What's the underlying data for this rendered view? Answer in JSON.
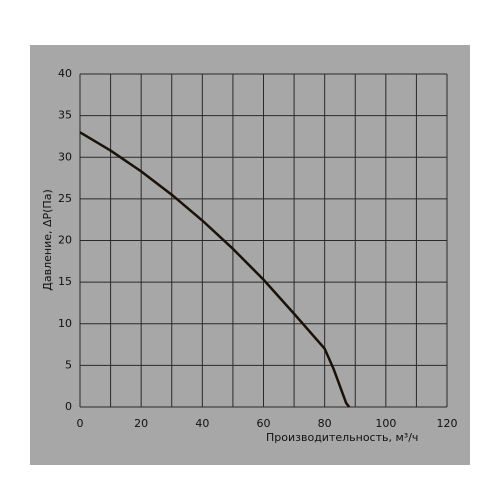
{
  "chart_data": {
    "type": "line",
    "x_label": "Производительность, м³/ч",
    "y_label": "Давление, ΔP(Па)",
    "x": [
      0,
      10,
      20,
      30,
      40,
      50,
      60,
      70,
      80,
      83,
      85,
      87,
      88
    ],
    "series": [
      {
        "color": "#1a1208",
        "values": [
          33,
          30.8,
          28.3,
          25.5,
          22.4,
          19,
          15.3,
          11.2,
          7,
          4.5,
          2.5,
          0.5,
          0
        ]
      }
    ],
    "xlim": [
      0,
      120
    ],
    "ylim": [
      0,
      40
    ],
    "xticks": [
      0,
      20,
      40,
      60,
      80,
      100,
      120
    ],
    "yticks": [
      0,
      5,
      10,
      15,
      20,
      25,
      30,
      35,
      40
    ],
    "x_gridlines": [
      0,
      10,
      20,
      30,
      40,
      50,
      60,
      70,
      80,
      90,
      100,
      110,
      120
    ],
    "grid": true
  }
}
